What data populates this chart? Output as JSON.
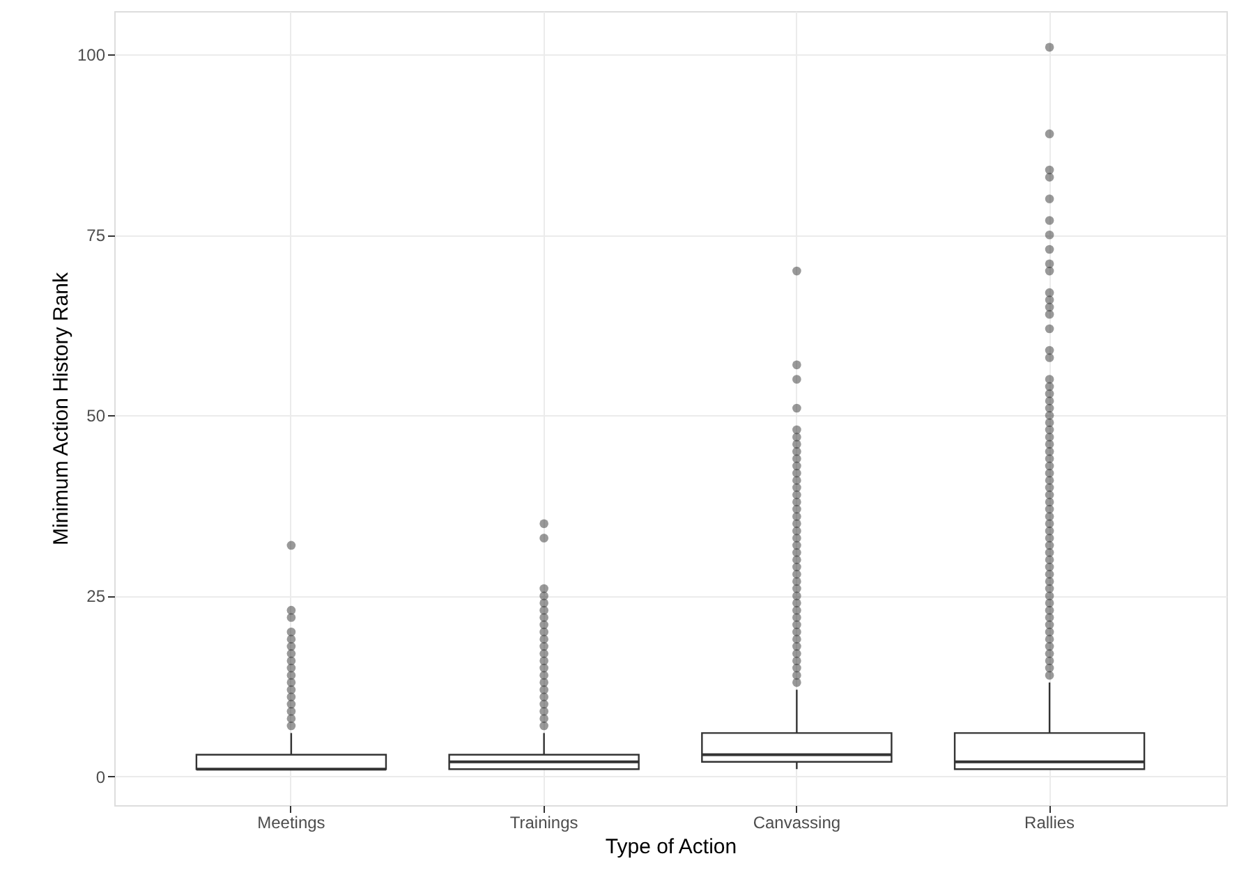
{
  "chart_data": {
    "type": "box",
    "xlabel": "Type of Action",
    "ylabel": "Minimum Action History Rank",
    "categories": [
      "Meetings",
      "Trainings",
      "Canvassing",
      "Rallies"
    ],
    "series": [
      {
        "color": "#333333",
        "boxes": [
          {
            "low": 1,
            "q1": 1,
            "median": 1,
            "q3": 3,
            "high": 6,
            "outliers": [
              7,
              8,
              9,
              10,
              11,
              12,
              13,
              14,
              15,
              16,
              17,
              18,
              19,
              20,
              22,
              23,
              32
            ]
          },
          {
            "low": 1,
            "q1": 1,
            "median": 2,
            "q3": 3,
            "high": 6,
            "outliers": [
              7,
              8,
              9,
              10,
              11,
              12,
              13,
              14,
              15,
              16,
              17,
              18,
              19,
              20,
              21,
              22,
              23,
              24,
              25,
              26,
              33,
              35
            ]
          },
          {
            "low": 1,
            "q1": 2,
            "median": 3,
            "q3": 6,
            "high": 12,
            "outliers": [
              13,
              14,
              15,
              16,
              17,
              18,
              19,
              20,
              21,
              22,
              23,
              24,
              25,
              26,
              27,
              28,
              29,
              30,
              31,
              32,
              33,
              34,
              35,
              36,
              37,
              38,
              39,
              40,
              41,
              42,
              43,
              44,
              45,
              46,
              47,
              48,
              51,
              55,
              57,
              70
            ]
          },
          {
            "low": 1,
            "q1": 1,
            "median": 2,
            "q3": 6,
            "high": 13,
            "outliers": [
              14,
              15,
              16,
              17,
              18,
              19,
              20,
              21,
              22,
              23,
              24,
              25,
              26,
              27,
              28,
              29,
              30,
              31,
              32,
              33,
              34,
              35,
              36,
              37,
              38,
              39,
              40,
              41,
              42,
              43,
              44,
              45,
              46,
              47,
              48,
              49,
              50,
              51,
              52,
              53,
              54,
              55,
              58,
              59,
              62,
              64,
              65,
              66,
              67,
              70,
              71,
              73,
              75,
              77,
              80,
              83,
              84,
              89,
              101
            ]
          }
        ]
      }
    ],
    "ylim": [
      -4,
      106
    ],
    "yticks": [
      0,
      25,
      50,
      75,
      100
    ],
    "grid": true,
    "marker": "circle"
  }
}
